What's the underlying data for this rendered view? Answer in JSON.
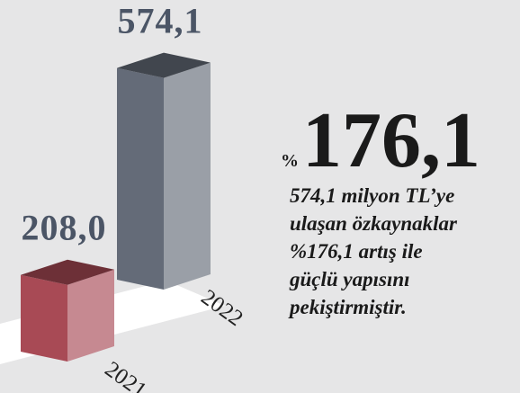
{
  "chart_data": {
    "type": "bar3d",
    "categories": [
      "2021",
      "2022"
    ],
    "values": [
      208.0,
      574.1
    ],
    "value_labels": [
      "208,0",
      "574,1"
    ],
    "colors": [
      "#a84a55",
      "#646b78"
    ],
    "headline": {
      "prefix": "%",
      "value": "176,1"
    },
    "description": [
      "574,1 milyon TL’ye",
      "ulaşan özkaynaklar",
      "%176,1 artış ile",
      "güçlü yapısını",
      "pekiştirmiştir."
    ]
  }
}
